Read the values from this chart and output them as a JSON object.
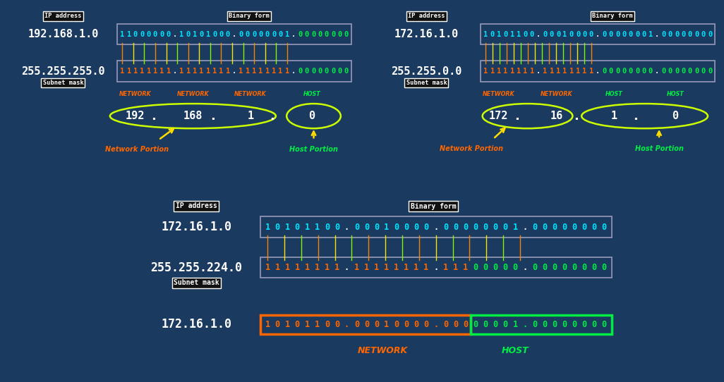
{
  "bg_color": "#1b3a5f",
  "panel_bg": "#1e3f6e",
  "text_white": "#ffffff",
  "text_cyan": "#00e5ff",
  "text_orange": "#ff6600",
  "text_green": "#00ee44",
  "text_yellow": "#ffdd00",
  "oval_color": "#ccff00",
  "line_colors": [
    "#ff8800",
    "#ffee00",
    "#88ff00"
  ],
  "panel1": {
    "ip": "192.168.1.0",
    "mask": "255.255.255.0",
    "ip_chars": "11000000.10101000.00000001.00000000",
    "ip_char_colors": [
      "c",
      "c",
      "c",
      "c",
      "c",
      "c",
      "c",
      "c",
      "w",
      "c",
      "c",
      "c",
      "c",
      "c",
      "c",
      "c",
      "c",
      "w",
      "c",
      "c",
      "c",
      "c",
      "c",
      "c",
      "c",
      "c",
      "w",
      "g",
      "g",
      "g",
      "g",
      "g",
      "g",
      "g",
      "g"
    ],
    "mask_chars": "11111111.11111111.11111111.00000000",
    "mask_char_colors": [
      "o",
      "o",
      "o",
      "o",
      "o",
      "o",
      "o",
      "o",
      "w",
      "o",
      "o",
      "o",
      "o",
      "o",
      "o",
      "o",
      "o",
      "w",
      "o",
      "o",
      "o",
      "o",
      "o",
      "o",
      "o",
      "o",
      "w",
      "g",
      "g",
      "g",
      "g",
      "g",
      "g",
      "g",
      "g"
    ],
    "labels": [
      "NETWORK",
      "NETWORK",
      "NETWORK",
      "HOST"
    ],
    "label_colors": [
      "#ff6600",
      "#ff6600",
      "#ff6600",
      "#00ee44"
    ],
    "octets": [
      "192",
      "168",
      "1",
      "0"
    ],
    "network_label": "Network Portion",
    "host_label": "Host Portion",
    "net_arrow_from": [
      0.42,
      0.3
    ],
    "net_arrow_to": [
      0.48,
      0.38
    ],
    "host_arrow_from": [
      0.88,
      0.3
    ],
    "host_arrow_to": [
      0.88,
      0.38
    ]
  },
  "panel2": {
    "ip": "172.16.1.0",
    "mask": "255.255.0.0",
    "ip_chars": "10101100.00010000.00000001.00000000",
    "ip_char_colors": [
      "c",
      "c",
      "c",
      "c",
      "c",
      "c",
      "c",
      "c",
      "w",
      "c",
      "c",
      "c",
      "c",
      "c",
      "c",
      "c",
      "c",
      "w",
      "c",
      "c",
      "c",
      "c",
      "c",
      "c",
      "c",
      "c",
      "w",
      "c",
      "c",
      "c",
      "c",
      "c",
      "c",
      "c",
      "c"
    ],
    "mask_chars": "11111111.11111111.00000000.00000000",
    "mask_char_colors": [
      "o",
      "o",
      "o",
      "o",
      "o",
      "o",
      "o",
      "o",
      "w",
      "o",
      "o",
      "o",
      "o",
      "o",
      "o",
      "o",
      "o",
      "w",
      "g",
      "g",
      "g",
      "g",
      "g",
      "g",
      "g",
      "g",
      "w",
      "g",
      "g",
      "g",
      "g",
      "g",
      "g",
      "g",
      "g"
    ],
    "labels": [
      "NETWORK",
      "NETWORK",
      "HOST",
      "HOST"
    ],
    "label_colors": [
      "#ff6600",
      "#ff6600",
      "#00ee44",
      "#00ee44"
    ],
    "octets": [
      "172",
      "16",
      "1",
      "0"
    ],
    "network_label": "Network Portion",
    "host_label": "Host Portion"
  },
  "panel3": {
    "ip": "172.16.1.0",
    "mask": "255.255.224.0",
    "ip_chars": "10101100.00010000.00000001.00000000",
    "ip_char_colors": [
      "c",
      "c",
      "c",
      "c",
      "c",
      "c",
      "c",
      "c",
      "w",
      "c",
      "c",
      "c",
      "c",
      "c",
      "c",
      "c",
      "c",
      "w",
      "c",
      "c",
      "c",
      "c",
      "c",
      "c",
      "c",
      "c",
      "w",
      "c",
      "c",
      "c",
      "c",
      "c",
      "c",
      "c",
      "c"
    ],
    "mask_chars": "11111111.11111111.11100000.00000000",
    "mask_char_colors": [
      "o",
      "o",
      "o",
      "o",
      "o",
      "o",
      "o",
      "o",
      "w",
      "o",
      "o",
      "o",
      "o",
      "o",
      "o",
      "o",
      "o",
      "w",
      "o",
      "o",
      "o",
      "g",
      "g",
      "g",
      "g",
      "g",
      "w",
      "g",
      "g",
      "g",
      "g",
      "g",
      "g",
      "g",
      "g"
    ],
    "result_ip": "172.16.1.0",
    "result_chars": "10101100.00010000.00000001.00000000",
    "result_split": 21,
    "network_label": "NETWORK",
    "host_label": "HOST"
  }
}
